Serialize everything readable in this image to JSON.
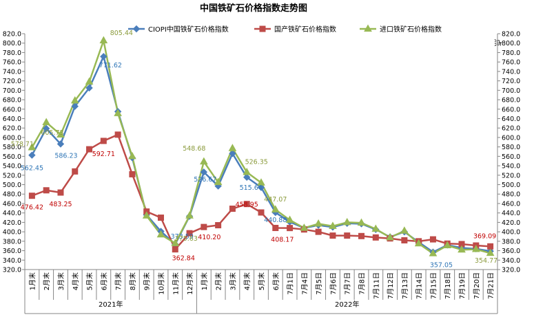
{
  "chart_data": {
    "type": "line",
    "title": "中国铁矿石价格指数走势图",
    "right_axis_unit": "点",
    "ylim": [
      320,
      820
    ],
    "ytick_step": 20,
    "grid": false,
    "legend_position": "top",
    "categories": [
      "1月末",
      "2月末",
      "3月末",
      "4月末",
      "5月末",
      "6月末",
      "7月末",
      "8月末",
      "9月末",
      "10月末",
      "11月末",
      "12月末",
      "1月末",
      "2月末",
      "3月末",
      "4月末",
      "5月末",
      "6月末",
      "7月1日",
      "7月4日",
      "7月5日",
      "7月6日",
      "7月7日",
      "7月8日",
      "7月11日",
      "7月12日",
      "7月13日",
      "7月14日",
      "7月15日",
      "7月18日",
      "7月19日",
      "7月20日",
      "7月21日"
    ],
    "year_groups": [
      {
        "label": "2021年",
        "start": 0,
        "end": 11
      },
      {
        "label": "2022年",
        "start": 12,
        "end": 32
      }
    ],
    "series": [
      {
        "name": "CIOPI中国铁矿石价格指数",
        "color": "#4a7ebb",
        "marker": "diamond",
        "values": [
          562.45,
          619,
          586.23,
          666,
          705,
          771.62,
          655,
          557,
          436,
          401,
          373.59,
          433,
          526.67,
          497,
          566,
          515.64,
          494,
          440.88,
          421,
          408,
          414,
          410,
          418,
          417,
          405,
          389,
          400,
          378,
          357.05,
          372,
          366,
          364,
          359
        ]
      },
      {
        "name": "国产铁矿石价格指数",
        "color": "#be4b48",
        "marker": "square",
        "values": [
          476.42,
          488,
          483.25,
          528,
          575,
          592.71,
          606,
          522,
          443,
          430,
          362.84,
          397,
          410.2,
          414,
          449,
          458.95,
          441,
          408.17,
          408,
          405,
          400,
          392,
          392,
          391,
          388,
          386,
          382,
          380,
          384,
          375,
          374,
          371,
          369.09
        ]
      },
      {
        "name": "进口铁矿石价格指数",
        "color": "#98b954",
        "marker": "triangle",
        "values": [
          578.71,
          632,
          605.73,
          678,
          718,
          805.44,
          651,
          560,
          434,
          394,
          375.63,
          434,
          548.68,
          505,
          577,
          526.35,
          504,
          447.07,
          425,
          408,
          417,
          412,
          420,
          419,
          406,
          388,
          402,
          375,
          354,
          371,
          362,
          363,
          354.77
        ]
      }
    ],
    "data_labels": [
      {
        "series": 0,
        "index": 0,
        "text": "562.45"
      },
      {
        "series": 0,
        "index": 2,
        "text": "586.23"
      },
      {
        "series": 0,
        "index": 5,
        "text": "771.62"
      },
      {
        "series": 0,
        "index": 10,
        "text": "373.59"
      },
      {
        "series": 0,
        "index": 12,
        "text": "526.67"
      },
      {
        "series": 0,
        "index": 15,
        "text": "515.64"
      },
      {
        "series": 0,
        "index": 17,
        "text": "440.88"
      },
      {
        "series": 0,
        "index": 28,
        "text": "357.05"
      },
      {
        "series": 1,
        "index": 0,
        "text": "476.42"
      },
      {
        "series": 1,
        "index": 2,
        "text": "483.25"
      },
      {
        "series": 1,
        "index": 5,
        "text": "592.71"
      },
      {
        "series": 1,
        "index": 10,
        "text": "362.84"
      },
      {
        "series": 1,
        "index": 12,
        "text": "410.20"
      },
      {
        "series": 1,
        "index": 15,
        "text": "458.95"
      },
      {
        "series": 1,
        "index": 17,
        "text": "408.17"
      },
      {
        "series": 1,
        "index": 32,
        "text": "369.09"
      },
      {
        "series": 2,
        "index": 0,
        "text": "578.71"
      },
      {
        "series": 2,
        "index": 2,
        "text": "605.73"
      },
      {
        "series": 2,
        "index": 5,
        "text": "805.44"
      },
      {
        "series": 2,
        "index": 10,
        "text": "375.63"
      },
      {
        "series": 2,
        "index": 12,
        "text": "548.68"
      },
      {
        "series": 2,
        "index": 15,
        "text": "526.35"
      },
      {
        "series": 2,
        "index": 17,
        "text": "447.07"
      },
      {
        "series": 2,
        "index": 32,
        "text": "354.77"
      }
    ]
  }
}
